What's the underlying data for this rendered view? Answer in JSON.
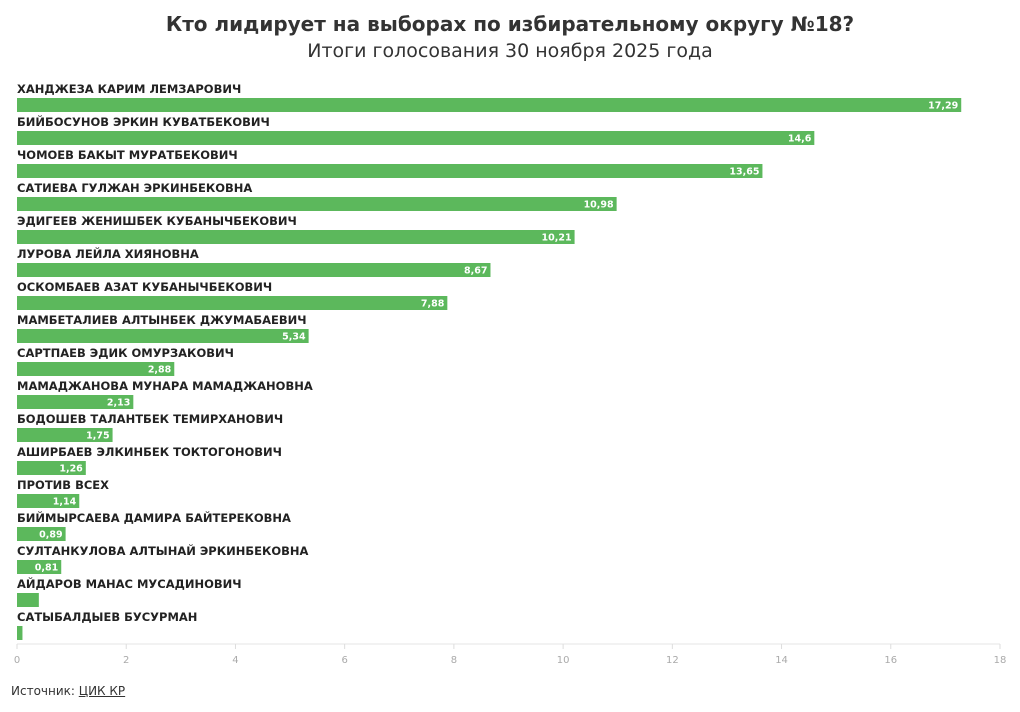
{
  "title": "Кто лидирует на выборах по избирательному округу №18?",
  "subtitle": "Итоги голосования 30 ноября 2025 года",
  "source": {
    "label": "Источник:",
    "link_text": "ЦИК КР"
  },
  "chart_data": {
    "type": "bar",
    "orientation": "horizontal",
    "bar_color": "#5cb85c",
    "categories": [
      "ХАНДЖЕЗА КАРИМ ЛЕМЗАРОВИЧ",
      "БИЙБОСУНОВ ЭРКИН КУВАТБЕКОВИЧ",
      "ЧОМОЕВ БАКЫТ МУРАТБЕКОВИЧ",
      "САТИЕВА ГУЛЖАН ЭРКИНБЕКОВНА",
      "ЭДИГЕЕВ ЖЕНИШБЕК КУБАНЫЧБЕКОВИЧ",
      "ЛУРОВА ЛЕЙЛА ХИЯНОВНА",
      "ОСКОМБАЕВ АЗАТ КУБАНЫЧБЕКОВИЧ",
      "МАМБЕТАЛИЕВ АЛТЫНБЕК ДЖУМАБАЕВИЧ",
      "САРТПАЕВ ЭДИК ОМУРЗАКОВИЧ",
      "МАМАДЖАНОВА МУНАРА МАМАДЖАНОВНА",
      "БОДОШЕВ ТАЛАНТБЕК ТЕМИРХАНОВИЧ",
      "АШИРБАЕВ ЭЛКИНБЕК ТОКТОГОНОВИЧ",
      "ПРОТИВ ВСЕХ",
      "БИЙМЫРСАЕВА ДАМИРА БАЙТЕРЕКОВНА",
      "СУЛТАНКУЛОВА АЛТЫНАЙ ЭРКИНБЕКОВНА",
      "АЙДАРОВ МАНАС МУСАДИНОВИЧ",
      "САТЫБАЛДЫЕВ БУСУРМАН"
    ],
    "values": [
      17.29,
      14.6,
      13.65,
      10.98,
      10.21,
      8.67,
      7.88,
      5.34,
      2.88,
      2.13,
      1.75,
      1.26,
      1.14,
      0.89,
      0.81,
      0.4,
      0.1
    ],
    "data_labels": [
      "17,29",
      "14,6",
      "13,65",
      "10,98",
      "10,21",
      "8,67",
      "7,88",
      "5,34",
      "2,88",
      "2,13",
      "1,75",
      "1,26",
      "1,14",
      "0,89",
      "0,81",
      "",
      ""
    ],
    "xlim": [
      0,
      18
    ],
    "xticks": [
      "0",
      "2",
      "4",
      "6",
      "8",
      "10",
      "12",
      "14",
      "16",
      "18"
    ],
    "grid": false
  }
}
